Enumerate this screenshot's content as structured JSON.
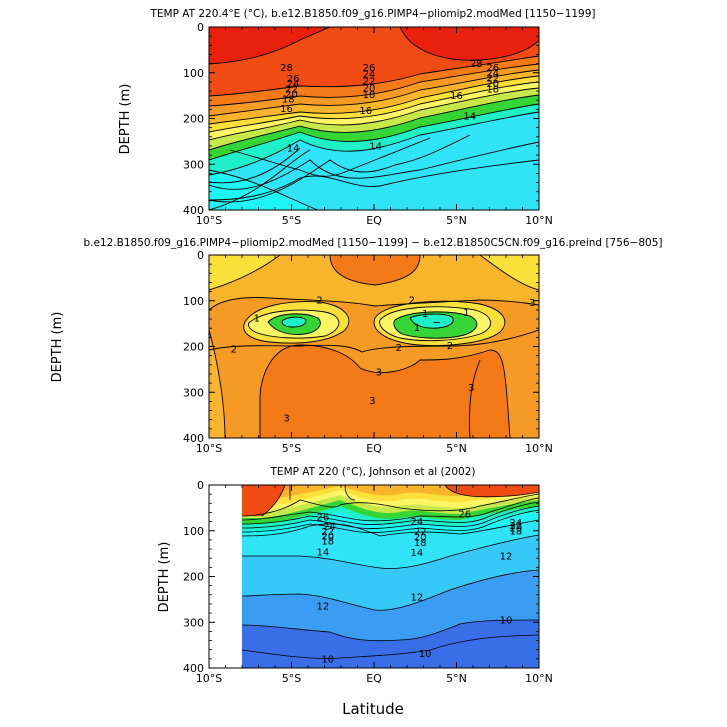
{
  "colors": {
    "warm_red": "#e8200c",
    "red_orange": "#ef4b12",
    "orange": "#f47a18",
    "light_orange": "#f69a26",
    "amber": "#f8b42a",
    "yellow": "#fbe03a",
    "pale_yellow": "#fcf564",
    "yellow_green": "#c8e84a",
    "green": "#35d535",
    "aqua": "#1ef0c8",
    "cyan": "#1ef5f5",
    "light_cyan": "#30e4f8",
    "sky": "#36c8f6",
    "blue": "#3a9cf2",
    "deep_blue": "#3a6ee8",
    "white": "#ffffff"
  },
  "shared": {
    "x_ticks": [
      "10°S",
      "5°S",
      "EQ",
      "5°N",
      "10°N"
    ],
    "x_values": [
      -10,
      -5,
      0,
      5,
      10
    ],
    "y_ticks": [
      "0",
      "100",
      "200",
      "300",
      "400"
    ],
    "y_values": [
      0,
      100,
      200,
      300,
      400
    ],
    "x_label": "Latitude"
  },
  "chart_data": [
    {
      "type": "contour",
      "title": "TEMP AT 220.4°E (°C), b.e12.B1850.f09_g16.PIMP4−pliomip2.modMed [1150−1199]",
      "ylabel": "DEPTH (m)",
      "xlim": [
        -10,
        10
      ],
      "ylim": [
        0,
        400
      ],
      "labels": [
        {
          "text": "28",
          "lat": -5.3,
          "depth": 88
        },
        {
          "text": "26",
          "lat": -4.9,
          "depth": 113
        },
        {
          "text": "24",
          "lat": -4.9,
          "depth": 124
        },
        {
          "text": "22",
          "lat": -5.0,
          "depth": 135
        },
        {
          "text": "20",
          "lat": -5.0,
          "depth": 146
        },
        {
          "text": "18",
          "lat": -5.2,
          "depth": 157
        },
        {
          "text": "16",
          "lat": -5.3,
          "depth": 178
        },
        {
          "text": "26",
          "lat": -0.3,
          "depth": 88
        },
        {
          "text": "24",
          "lat": -0.3,
          "depth": 103
        },
        {
          "text": "22",
          "lat": -0.3,
          "depth": 118
        },
        {
          "text": "20",
          "lat": -0.3,
          "depth": 133
        },
        {
          "text": "18",
          "lat": -0.3,
          "depth": 148
        },
        {
          "text": "16",
          "lat": -0.5,
          "depth": 183
        },
        {
          "text": "28",
          "lat": 6.2,
          "depth": 80
        },
        {
          "text": "26",
          "lat": 7.2,
          "depth": 88
        },
        {
          "text": "24",
          "lat": 7.2,
          "depth": 100
        },
        {
          "text": "22",
          "lat": 7.2,
          "depth": 112
        },
        {
          "text": "20",
          "lat": 7.2,
          "depth": 124
        },
        {
          "text": "18",
          "lat": 7.2,
          "depth": 135
        },
        {
          "text": "16",
          "lat": 5.0,
          "depth": 150
        },
        {
          "text": "14",
          "lat": 5.8,
          "depth": 195
        },
        {
          "text": "14",
          "lat": -4.9,
          "depth": 265
        },
        {
          "text": "14",
          "lat": 0.1,
          "depth": 260
        }
      ]
    },
    {
      "type": "contour",
      "title": "b.e12.B1850.f09_g16.PIMP4−pliomip2.modMed [1150−1199] − b.e12.B1850C5CN.f09_g16.preind [756−805]",
      "ylabel": "DEPTH (m)",
      "xlim": [
        -10,
        10
      ],
      "ylim": [
        0,
        400
      ],
      "labels": [
        {
          "text": "2",
          "lat": -3.3,
          "depth": 98
        },
        {
          "text": "2",
          "lat": 2.3,
          "depth": 98
        },
        {
          "text": "3",
          "lat": 9.6,
          "depth": 104
        },
        {
          "text": "1",
          "lat": -7.1,
          "depth": 138
        },
        {
          "text": "1",
          "lat": 3.1,
          "depth": 128
        },
        {
          "text": "1",
          "lat": 5.6,
          "depth": 126
        },
        {
          "text": "−",
          "lat": 3.8,
          "depth": 146
        },
        {
          "text": "1",
          "lat": 2.6,
          "depth": 159
        },
        {
          "text": "2",
          "lat": 4.6,
          "depth": 198
        },
        {
          "text": "2",
          "lat": 1.5,
          "depth": 202
        },
        {
          "text": "2",
          "lat": -8.5,
          "depth": 206
        },
        {
          "text": "3",
          "lat": 0.3,
          "depth": 256
        },
        {
          "text": "3",
          "lat": 5.9,
          "depth": 290
        },
        {
          "text": "3",
          "lat": -0.1,
          "depth": 318
        },
        {
          "text": "3",
          "lat": -5.3,
          "depth": 356
        }
      ]
    },
    {
      "type": "contour",
      "title": "TEMP AT 220 (°C), Johnson et al (2002)",
      "ylabel": "DEPTH (m)",
      "xlim": [
        -10,
        10
      ],
      "ylim": [
        0,
        400
      ],
      "data_xlim": [
        -8,
        10
      ],
      "labels": [
        {
          "text": "26",
          "lat": -3.1,
          "depth": 70
        },
        {
          "text": "24",
          "lat": -2.7,
          "depth": 90
        },
        {
          "text": "22",
          "lat": -2.8,
          "depth": 102
        },
        {
          "text": "20",
          "lat": -2.8,
          "depth": 112
        },
        {
          "text": "18",
          "lat": -2.8,
          "depth": 122
        },
        {
          "text": "14",
          "lat": -3.1,
          "depth": 146
        },
        {
          "text": "24",
          "lat": 2.6,
          "depth": 80
        },
        {
          "text": "22",
          "lat": 2.8,
          "depth": 102
        },
        {
          "text": "20",
          "lat": 2.8,
          "depth": 114
        },
        {
          "text": "18",
          "lat": 2.8,
          "depth": 126
        },
        {
          "text": "14",
          "lat": 2.6,
          "depth": 148
        },
        {
          "text": "26",
          "lat": 5.5,
          "depth": 63
        },
        {
          "text": "24",
          "lat": 8.6,
          "depth": 82
        },
        {
          "text": "22",
          "lat": 8.6,
          "depth": 88
        },
        {
          "text": "20",
          "lat": 8.6,
          "depth": 94
        },
        {
          "text": "18",
          "lat": 8.6,
          "depth": 100
        },
        {
          "text": "12",
          "lat": 8.0,
          "depth": 155
        },
        {
          "text": "12",
          "lat": -3.1,
          "depth": 265
        },
        {
          "text": "12",
          "lat": 2.6,
          "depth": 245
        },
        {
          "text": "10",
          "lat": 8.0,
          "depth": 295
        },
        {
          "text": "10",
          "lat": 3.1,
          "depth": 368
        },
        {
          "text": "10",
          "lat": -2.8,
          "depth": 380
        }
      ]
    }
  ]
}
